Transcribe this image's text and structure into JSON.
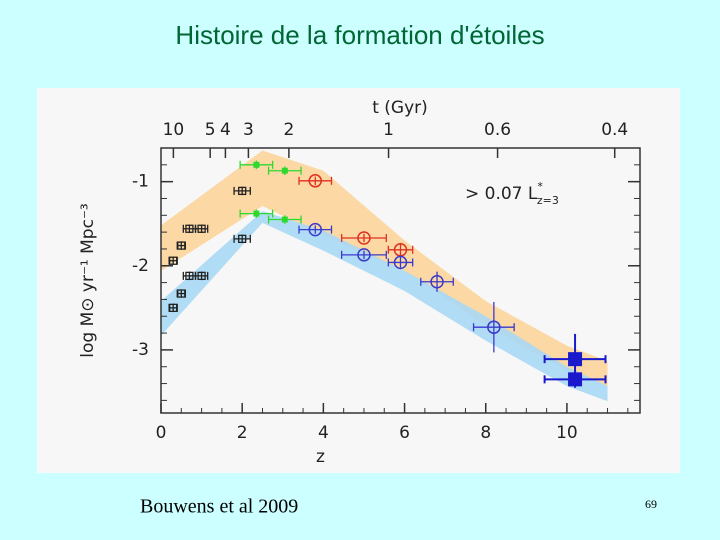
{
  "slide": {
    "title": "Histoire de la formation d'étoiles",
    "source": "Bouwens et al 2009",
    "page": "69"
  },
  "chart_data": {
    "type": "scatter",
    "xlabel": "z",
    "ylabel": "log M⊙ yr⁻¹ Mpc⁻³",
    "x2label": "t (Gyr)",
    "xlim": [
      0,
      11.8
    ],
    "ylim": [
      -3.75,
      -0.6
    ],
    "xticks": [
      0,
      2,
      4,
      6,
      8,
      10
    ],
    "yticks": [
      -1,
      -2,
      -3
    ],
    "x2ticks": [
      10,
      5,
      4,
      3,
      2,
      1,
      0.6,
      0.4
    ],
    "annotation": {
      "text": "> 0.07 L",
      "sup": "*",
      "sub": "z=3"
    },
    "bands": [
      {
        "color": "#fbd49a",
        "x": [
          0,
          2.5,
          4,
          6,
          8,
          10,
          11
        ],
        "upper": [
          -1.52,
          -0.63,
          -0.87,
          -1.7,
          -2.42,
          -2.95,
          -3.13
        ],
        "lower": [
          -2.06,
          -1.29,
          -1.64,
          -2.06,
          -2.71,
          -3.25,
          -3.43
        ]
      },
      {
        "color": "#a9d8f5",
        "x": [
          0,
          2.5,
          4,
          6,
          8,
          10,
          11
        ],
        "upper": [
          -2.42,
          -1.35,
          -1.58,
          -2.06,
          -2.6,
          -3.2,
          -3.43
        ],
        "lower": [
          -2.83,
          -1.49,
          -1.82,
          -2.3,
          -2.89,
          -3.43,
          -3.61
        ]
      }
    ],
    "series": [
      {
        "marker": "tick",
        "color": "#2fd82f",
        "x": [
          2.35,
          3.05,
          2.35,
          3.05
        ],
        "y": [
          -0.8,
          -0.87,
          -1.38,
          -1.45
        ],
        "xerr": [
          0.4,
          0.4,
          0.4,
          0.4
        ],
        "yerr": [
          0.05,
          0.05,
          0.05,
          0.05
        ]
      },
      {
        "marker": "crosshair",
        "color": "#222222",
        "x": [
          0.3,
          0.5,
          0.7,
          1.0,
          2.0,
          0.3,
          0.5,
          0.7,
          1.0,
          2.0
        ],
        "y": [
          -1.94,
          -1.76,
          -1.56,
          -1.56,
          -1.11,
          -2.5,
          -2.33,
          -2.12,
          -2.12,
          -1.68
        ],
        "xerr": [
          0.1,
          0.1,
          0.15,
          0.15,
          0.2,
          0.1,
          0.1,
          0.15,
          0.15,
          0.2
        ],
        "yerr": [
          0.05,
          0.05,
          0.05,
          0.05,
          0.05,
          0.05,
          0.05,
          0.05,
          0.05,
          0.05
        ]
      },
      {
        "marker": "circle",
        "color": "#e03020",
        "x": [
          3.8,
          5.0,
          5.9
        ],
        "y": [
          -0.99,
          -1.67,
          -1.81
        ],
        "xerr": [
          0.4,
          0.55,
          0.3
        ],
        "yerr": [
          0.05,
          0.05,
          0.08
        ]
      },
      {
        "marker": "circle",
        "color": "#3a3acc",
        "x": [
          3.8,
          5.0,
          5.9,
          6.8,
          8.2
        ],
        "y": [
          -1.57,
          -1.87,
          -1.96,
          -2.19,
          -2.73
        ],
        "xerr": [
          0.4,
          0.55,
          0.3,
          0.4,
          0.5
        ],
        "yerr": [
          0.05,
          0.05,
          0.08,
          0.12,
          0.3
        ]
      },
      {
        "marker": "square",
        "color": "#1a1acc",
        "x": [
          10.2,
          10.2
        ],
        "y": [
          -3.11,
          -3.35
        ],
        "xerr": [
          0.75,
          0.75
        ],
        "yerr": [
          0.3,
          0.1
        ]
      }
    ]
  }
}
